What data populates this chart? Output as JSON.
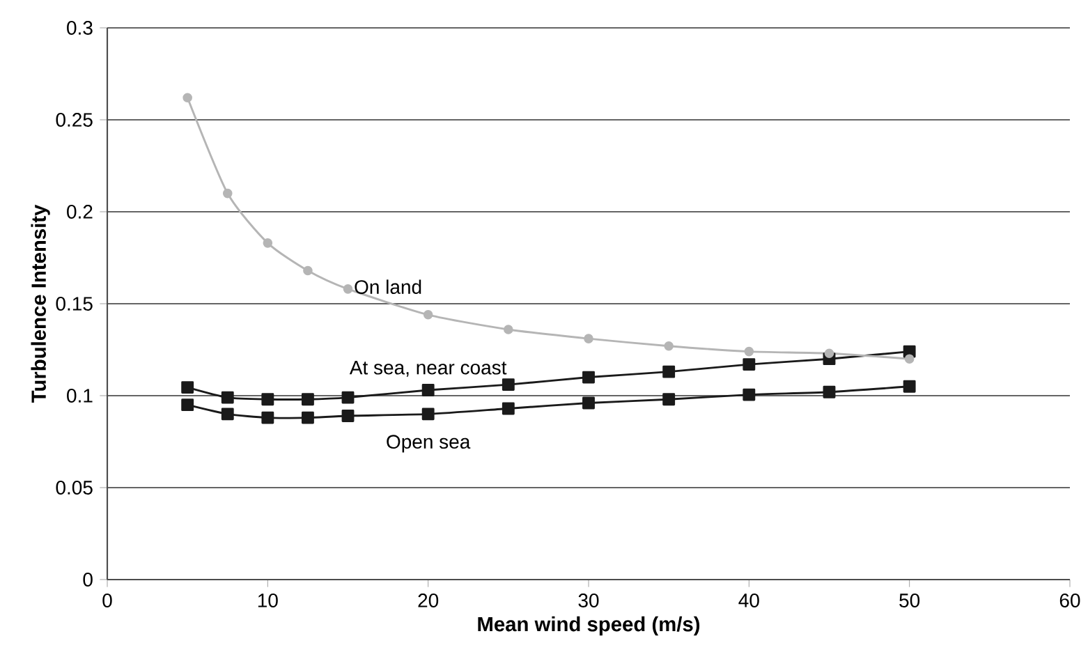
{
  "chart_data": {
    "type": "line",
    "xlabel": "Mean wind speed (m/s)",
    "ylabel": "Turbulence Intensity",
    "x": [
      5,
      7.5,
      10,
      12.5,
      15,
      20,
      25,
      30,
      35,
      40,
      45,
      50
    ],
    "series": [
      {
        "name": "On land",
        "color": "#b5b5b5",
        "marker": "circle",
        "values": [
          0.262,
          0.21,
          0.183,
          0.168,
          0.158,
          0.144,
          0.136,
          0.131,
          0.127,
          0.124,
          0.123,
          0.12
        ]
      },
      {
        "name": "At sea, near coast",
        "color": "#1a1a1a",
        "marker": "square",
        "values": [
          0.1045,
          0.099,
          0.098,
          0.098,
          0.099,
          0.103,
          0.106,
          0.11,
          0.113,
          0.117,
          0.12,
          0.124
        ]
      },
      {
        "name": "Open sea",
        "color": "#1a1a1a",
        "marker": "square",
        "values": [
          0.095,
          0.09,
          0.088,
          0.088,
          0.089,
          0.09,
          0.093,
          0.096,
          0.098,
          0.1005,
          0.102,
          0.105
        ]
      }
    ],
    "xlim": [
      0,
      60
    ],
    "xticks": [
      0,
      10,
      20,
      30,
      40,
      50,
      60
    ],
    "ylim": [
      0,
      0.3
    ],
    "yticks": [
      0,
      0.05,
      0.1,
      0.15,
      0.2,
      0.25,
      0.3
    ],
    "grid": "y"
  }
}
